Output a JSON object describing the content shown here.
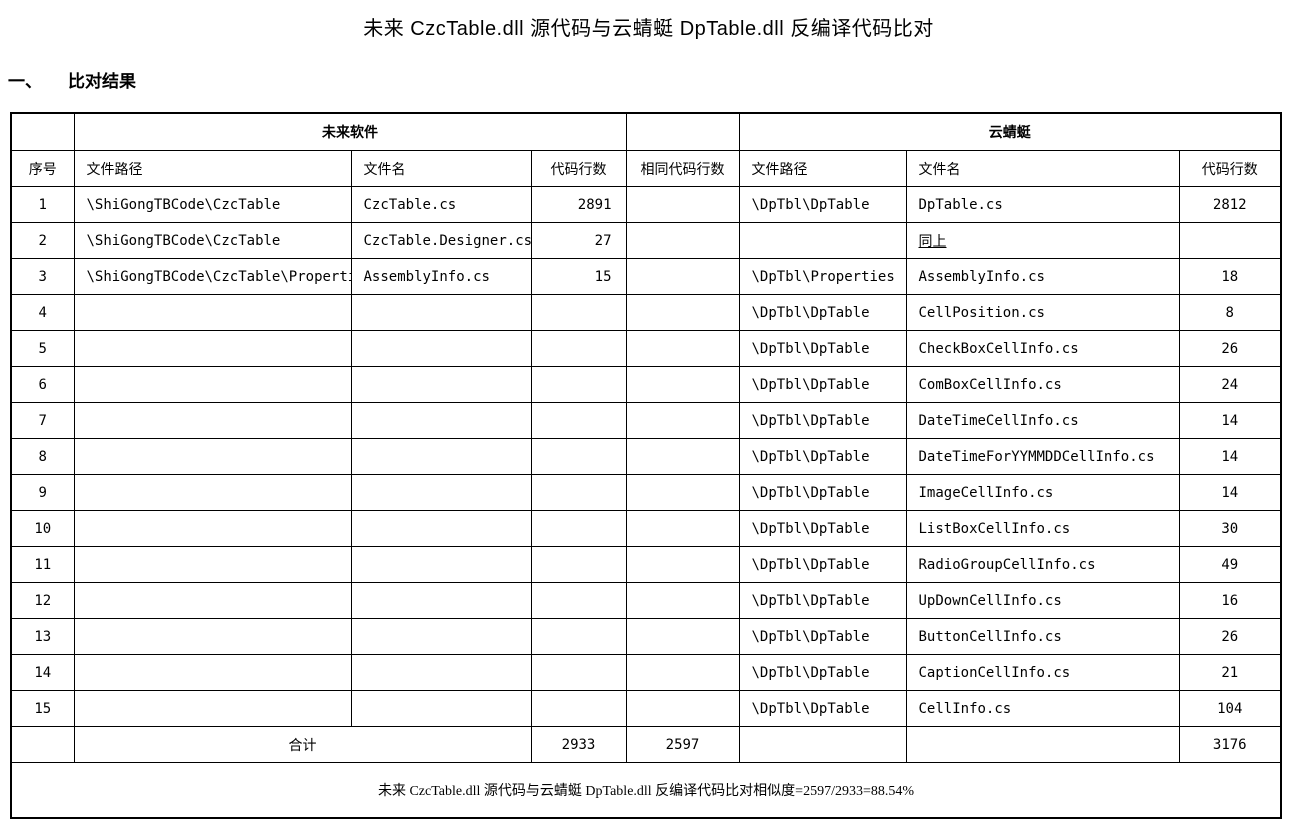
{
  "page": {
    "title": "未来 CzcTable.dll 源代码与云蜻蜓 DpTable.dll 反编译代码比对",
    "section_number": "一、",
    "section_title": "比对结果"
  },
  "table": {
    "group_headers": {
      "left": "未来软件",
      "right": "云蜻蜓"
    },
    "columns": [
      "序号",
      "文件路径",
      "文件名",
      "代码行数",
      "相同代码行数",
      "文件路径",
      "文件名",
      "代码行数"
    ],
    "rows": [
      {
        "no": "1",
        "l_path": "\\ShiGongTBCode\\CzcTable",
        "l_file": "CzcTable.cs",
        "l_lines": "2891",
        "same": "",
        "r_path": "\\DpTbl\\DpTable",
        "r_file": "DpTable.cs",
        "r_file_underline": false,
        "r_lines": "2812"
      },
      {
        "no": "2",
        "l_path": "\\ShiGongTBCode\\CzcTable",
        "l_file": "CzcTable.Designer.cs",
        "l_lines": "27",
        "same": "",
        "r_path": "",
        "r_file": "同上",
        "r_file_underline": true,
        "r_lines": ""
      },
      {
        "no": "3",
        "l_path": "\\ShiGongTBCode\\CzcTable\\Properties",
        "l_file": "AssemblyInfo.cs",
        "l_lines": "15",
        "same": "",
        "r_path": "\\DpTbl\\Properties",
        "r_file": "AssemblyInfo.cs",
        "r_file_underline": false,
        "r_lines": "18"
      },
      {
        "no": "4",
        "l_path": "",
        "l_file": "",
        "l_lines": "",
        "same": "",
        "r_path": "\\DpTbl\\DpTable",
        "r_file": "CellPosition.cs",
        "r_file_underline": false,
        "r_lines": "8"
      },
      {
        "no": "5",
        "l_path": "",
        "l_file": "",
        "l_lines": "",
        "same": "",
        "r_path": "\\DpTbl\\DpTable",
        "r_file": "CheckBoxCellInfo.cs",
        "r_file_underline": false,
        "r_lines": "26"
      },
      {
        "no": "6",
        "l_path": "",
        "l_file": "",
        "l_lines": "",
        "same": "",
        "r_path": "\\DpTbl\\DpTable",
        "r_file": "ComBoxCellInfo.cs",
        "r_file_underline": false,
        "r_lines": "24"
      },
      {
        "no": "7",
        "l_path": "",
        "l_file": "",
        "l_lines": "",
        "same": "",
        "r_path": "\\DpTbl\\DpTable",
        "r_file": "DateTimeCellInfo.cs",
        "r_file_underline": false,
        "r_lines": "14"
      },
      {
        "no": "8",
        "l_path": "",
        "l_file": "",
        "l_lines": "",
        "same": "",
        "r_path": "\\DpTbl\\DpTable",
        "r_file": "DateTimeForYYMMDDCellInfo.cs",
        "r_file_underline": false,
        "r_lines": "14"
      },
      {
        "no": "9",
        "l_path": "",
        "l_file": "",
        "l_lines": "",
        "same": "",
        "r_path": "\\DpTbl\\DpTable",
        "r_file": "ImageCellInfo.cs",
        "r_file_underline": false,
        "r_lines": "14"
      },
      {
        "no": "10",
        "l_path": "",
        "l_file": "",
        "l_lines": "",
        "same": "",
        "r_path": "\\DpTbl\\DpTable",
        "r_file": "ListBoxCellInfo.cs",
        "r_file_underline": false,
        "r_lines": "30"
      },
      {
        "no": "11",
        "l_path": "",
        "l_file": "",
        "l_lines": "",
        "same": "",
        "r_path": "\\DpTbl\\DpTable",
        "r_file": "RadioGroupCellInfo.cs",
        "r_file_underline": false,
        "r_lines": "49"
      },
      {
        "no": "12",
        "l_path": "",
        "l_file": "",
        "l_lines": "",
        "same": "",
        "r_path": "\\DpTbl\\DpTable",
        "r_file": "UpDownCellInfo.cs",
        "r_file_underline": false,
        "r_lines": "16"
      },
      {
        "no": "13",
        "l_path": "",
        "l_file": "",
        "l_lines": "",
        "same": "",
        "r_path": "\\DpTbl\\DpTable",
        "r_file": "ButtonCellInfo.cs",
        "r_file_underline": false,
        "r_lines": "26"
      },
      {
        "no": "14",
        "l_path": "",
        "l_file": "",
        "l_lines": "",
        "same": "",
        "r_path": "\\DpTbl\\DpTable",
        "r_file": "CaptionCellInfo.cs",
        "r_file_underline": false,
        "r_lines": "21"
      },
      {
        "no": "15",
        "l_path": "",
        "l_file": "",
        "l_lines": "",
        "same": "",
        "r_path": "\\DpTbl\\DpTable",
        "r_file": "CellInfo.cs",
        "r_file_underline": false,
        "r_lines": "104"
      }
    ],
    "total_row": {
      "label": "合计",
      "l_lines": "2933",
      "same": "2597",
      "r_lines": "3176"
    },
    "footer": "未来 CzcTable.dll 源代码与云蜻蜓 DpTable.dll 反编译代码比对相似度=2597/2933=88.54%"
  }
}
